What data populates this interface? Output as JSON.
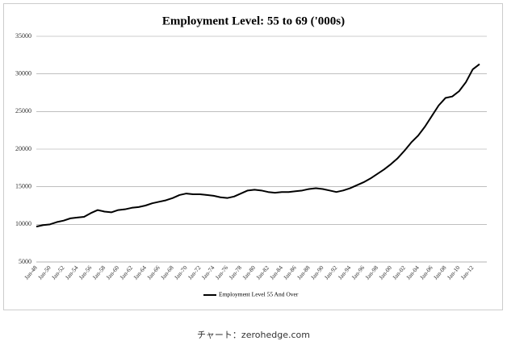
{
  "chart_data": {
    "type": "line",
    "title": "Employment Level: 55 to 69 ('000s)",
    "caption": "チャート：zerohedge.com",
    "categories": [
      "Jan-48",
      "Jan-50",
      "Jan-52",
      "Jan-54",
      "Jan-56",
      "Jan-58",
      "Jan-60",
      "Jan-62",
      "Jan-64",
      "Jan-66",
      "Jan-68",
      "Jan-70",
      "Jan-72",
      "Jan-74",
      "Jan-76",
      "Jan-78",
      "Jan-80",
      "Jan-82",
      "Jan-84",
      "Jan-86",
      "Jan-88",
      "Jan-90",
      "Jan-92",
      "Jan-94",
      "Jan-96",
      "Jan-98",
      "Jan-00",
      "Jan-02",
      "Jan-04",
      "Jan-06",
      "Jan-08",
      "Jan-10",
      "Jan-12"
    ],
    "xlim": [
      "Jan-48",
      "Jan-13"
    ],
    "series": [
      {
        "name": "Employment Level 55 And Over",
        "color": "#000000",
        "x": [
          "Jan-48",
          "Jan-49",
          "Jan-50",
          "Jan-51",
          "Jan-52",
          "Jan-53",
          "Jan-54",
          "Jan-55",
          "Jan-56",
          "Jan-57",
          "Jan-58",
          "Jan-59",
          "Jan-60",
          "Jan-61",
          "Jan-62",
          "Jan-63",
          "Jan-64",
          "Jan-65",
          "Jan-66",
          "Jan-67",
          "Jan-68",
          "Jan-69",
          "Jan-70",
          "Jan-71",
          "Jan-72",
          "Jan-73",
          "Jan-74",
          "Jan-75",
          "Jan-76",
          "Jan-77",
          "Jan-78",
          "Jan-79",
          "Jan-80",
          "Jan-81",
          "Jan-82",
          "Jan-83",
          "Jan-84",
          "Jan-85",
          "Jan-86",
          "Jan-87",
          "Jan-88",
          "Jan-89",
          "Jan-90",
          "Jan-91",
          "Jan-92",
          "Jan-93",
          "Jan-94",
          "Jan-95",
          "Jan-96",
          "Jan-97",
          "Jan-98",
          "Jan-99",
          "Jan-00",
          "Jan-01",
          "Jan-02",
          "Jan-03",
          "Jan-04",
          "Jan-05",
          "Jan-06",
          "Jan-07",
          "Jan-08",
          "Jan-09",
          "Jan-10",
          "Jan-11",
          "Jan-12",
          "Jan-13"
        ],
        "values": [
          9700,
          9900,
          10000,
          10300,
          10500,
          10800,
          10900,
          11000,
          11500,
          11900,
          11700,
          11600,
          11900,
          12000,
          12200,
          12300,
          12500,
          12800,
          13000,
          13200,
          13500,
          13900,
          14100,
          14000,
          14000,
          13900,
          13800,
          13600,
          13500,
          13700,
          14100,
          14500,
          14600,
          14500,
          14300,
          14200,
          14300,
          14300,
          14400,
          14500,
          14700,
          14800,
          14700,
          14500,
          14300,
          14500,
          14800,
          15200,
          15600,
          16100,
          16700,
          17300,
          18000,
          18800,
          19800,
          20900,
          21800,
          23000,
          24400,
          25800,
          26800,
          27000,
          27700,
          28900,
          30600,
          31300
        ]
      }
    ],
    "ylim": [
      5000,
      35000
    ],
    "yticks": [
      5000,
      10000,
      15000,
      20000,
      25000,
      30000,
      35000
    ],
    "grid": true
  }
}
